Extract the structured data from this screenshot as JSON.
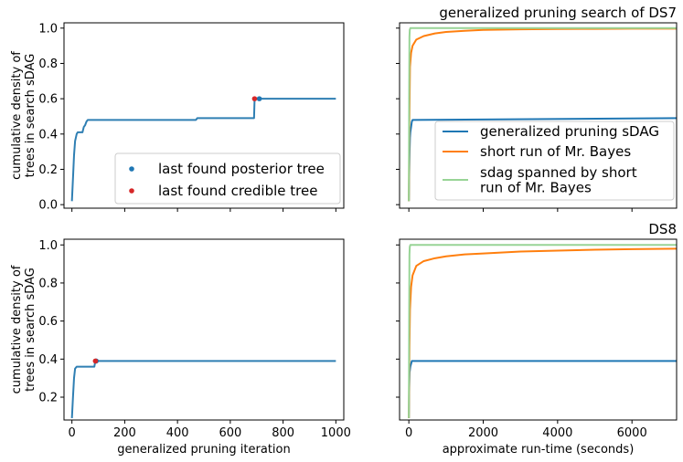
{
  "chart_data": [
    {
      "type": "line",
      "panel": "top-left",
      "title": "",
      "xlabel": "",
      "ylabel": "cumulative density of\ntrees in search sDAG",
      "xlim": [
        -30,
        1030
      ],
      "ylim": [
        -0.02,
        1.03
      ],
      "xticks": [
        0,
        200,
        400,
        600,
        800,
        1000
      ],
      "xtick_labels_visible": false,
      "yticks": [
        0.0,
        0.2,
        0.4,
        0.6,
        0.8,
        1.0
      ],
      "ytick_labels": [
        "0.0",
        "0.2",
        "0.4",
        "0.6",
        "0.8",
        "1.0"
      ],
      "legend": {
        "position": "lower-right",
        "entries": [
          "last found posterior tree",
          "last found credible tree"
        ]
      },
      "series": [
        {
          "color": "#2f7fb3",
          "x": [
            0,
            5,
            8,
            12,
            15,
            18,
            22,
            40,
            45,
            50,
            55,
            60,
            70,
            470,
            475,
            690,
            692,
            705,
            1000
          ],
          "y": [
            0.02,
            0.18,
            0.28,
            0.36,
            0.38,
            0.4,
            0.41,
            0.41,
            0.44,
            0.45,
            0.47,
            0.48,
            0.48,
            0.48,
            0.49,
            0.49,
            0.595,
            0.6,
            0.6
          ]
        }
      ],
      "points": [
        {
          "name": "last found posterior tree",
          "color": "#1f77b4",
          "x": 710,
          "y": 0.6
        },
        {
          "name": "last found credible tree",
          "color": "#d62728",
          "x": 692,
          "y": 0.6
        }
      ]
    },
    {
      "type": "line",
      "panel": "top-right",
      "title": "generalized pruning search of DS7",
      "xlabel": "",
      "ylabel": "",
      "xlim": [
        -250,
        7200
      ],
      "ylim": [
        -0.02,
        1.03
      ],
      "xticks": [
        0,
        2000,
        4000,
        6000
      ],
      "xtick_labels_visible": false,
      "yticks": [
        0.0,
        0.2,
        0.4,
        0.6,
        0.8,
        1.0
      ],
      "ytick_labels_visible": false,
      "legend": {
        "position": "lower-right",
        "entries": [
          "generalized pruning sDAG",
          "short run of Mr. Bayes",
          "sdag spanned by short\nrun of Mr. Bayes"
        ]
      },
      "series": [
        {
          "name": "generalized pruning sDAG",
          "color": "#1f77b4",
          "x": [
            0,
            10,
            20,
            30,
            40,
            60,
            80,
            100,
            7200
          ],
          "y": [
            0.02,
            0.18,
            0.3,
            0.38,
            0.41,
            0.44,
            0.47,
            0.48,
            0.49
          ]
        },
        {
          "name": "short run of Mr. Bayes",
          "color": "#ff7f0e",
          "x": [
            0,
            15,
            30,
            60,
            100,
            200,
            400,
            700,
            1000,
            1500,
            2000,
            3000,
            4000,
            5000,
            6000,
            7200
          ],
          "y": [
            0.02,
            0.5,
            0.78,
            0.86,
            0.9,
            0.935,
            0.955,
            0.97,
            0.978,
            0.985,
            0.99,
            0.993,
            0.995,
            0.996,
            0.997,
            0.997
          ]
        },
        {
          "name": "sdag spanned by short\nrun of Mr. Bayes",
          "color": "#98d496",
          "x": [
            0,
            8,
            16,
            25,
            40,
            7200
          ],
          "y": [
            0.02,
            0.6,
            0.95,
            0.99,
            1.0,
            1.0
          ]
        }
      ]
    },
    {
      "type": "line",
      "panel": "bottom-left",
      "title": "",
      "xlabel": "generalized pruning iteration",
      "ylabel": "cumulative density of\ntrees in search sDAG",
      "xlim": [
        -30,
        1030
      ],
      "ylim": [
        0.08,
        1.03
      ],
      "xticks": [
        0,
        200,
        400,
        600,
        800,
        1000
      ],
      "xtick_labels": [
        "0",
        "200",
        "400",
        "600",
        "800",
        "1000"
      ],
      "yticks": [
        0.2,
        0.4,
        0.6,
        0.8,
        1.0
      ],
      "ytick_labels": [
        "0.2",
        "0.4",
        "0.6",
        "0.8",
        "1.0"
      ],
      "series": [
        {
          "color": "#2f7fb3",
          "x": [
            0,
            4,
            8,
            12,
            18,
            85,
            88,
            92,
            1000
          ],
          "y": [
            0.09,
            0.2,
            0.3,
            0.35,
            0.36,
            0.36,
            0.385,
            0.39,
            0.39
          ]
        }
      ],
      "points": [
        {
          "name": "last found posterior tree",
          "color": "#1f77b4",
          "x": 92,
          "y": 0.39
        },
        {
          "name": "last found credible tree",
          "color": "#d62728",
          "x": 89,
          "y": 0.39
        }
      ]
    },
    {
      "type": "line",
      "panel": "bottom-right",
      "title": "DS8",
      "xlabel": "approximate run-time (seconds)",
      "ylabel": "",
      "xlim": [
        -250,
        7200
      ],
      "ylim": [
        0.08,
        1.03
      ],
      "xticks": [
        0,
        2000,
        4000,
        6000
      ],
      "xtick_labels": [
        "0",
        "2000",
        "4000",
        "6000"
      ],
      "yticks": [
        0.2,
        0.4,
        0.6,
        0.8,
        1.0
      ],
      "ytick_labels_visible": false,
      "series": [
        {
          "name": "generalized pruning sDAG",
          "color": "#1f77b4",
          "x": [
            0,
            10,
            20,
            40,
            80,
            7200
          ],
          "y": [
            0.09,
            0.25,
            0.33,
            0.36,
            0.39,
            0.39
          ]
        },
        {
          "name": "short run of Mr. Bayes",
          "color": "#ff7f0e",
          "x": [
            0,
            15,
            30,
            60,
            100,
            200,
            400,
            700,
            1000,
            1500,
            2000,
            3000,
            4000,
            5000,
            6000,
            7200
          ],
          "y": [
            0.09,
            0.45,
            0.66,
            0.78,
            0.84,
            0.89,
            0.915,
            0.93,
            0.94,
            0.95,
            0.955,
            0.965,
            0.97,
            0.975,
            0.978,
            0.98
          ]
        },
        {
          "name": "sdag spanned by short\nrun of Mr. Bayes",
          "color": "#98d496",
          "x": [
            0,
            8,
            16,
            25,
            40,
            7200
          ],
          "y": [
            0.09,
            0.6,
            0.95,
            0.99,
            1.0,
            1.0
          ]
        }
      ]
    }
  ]
}
